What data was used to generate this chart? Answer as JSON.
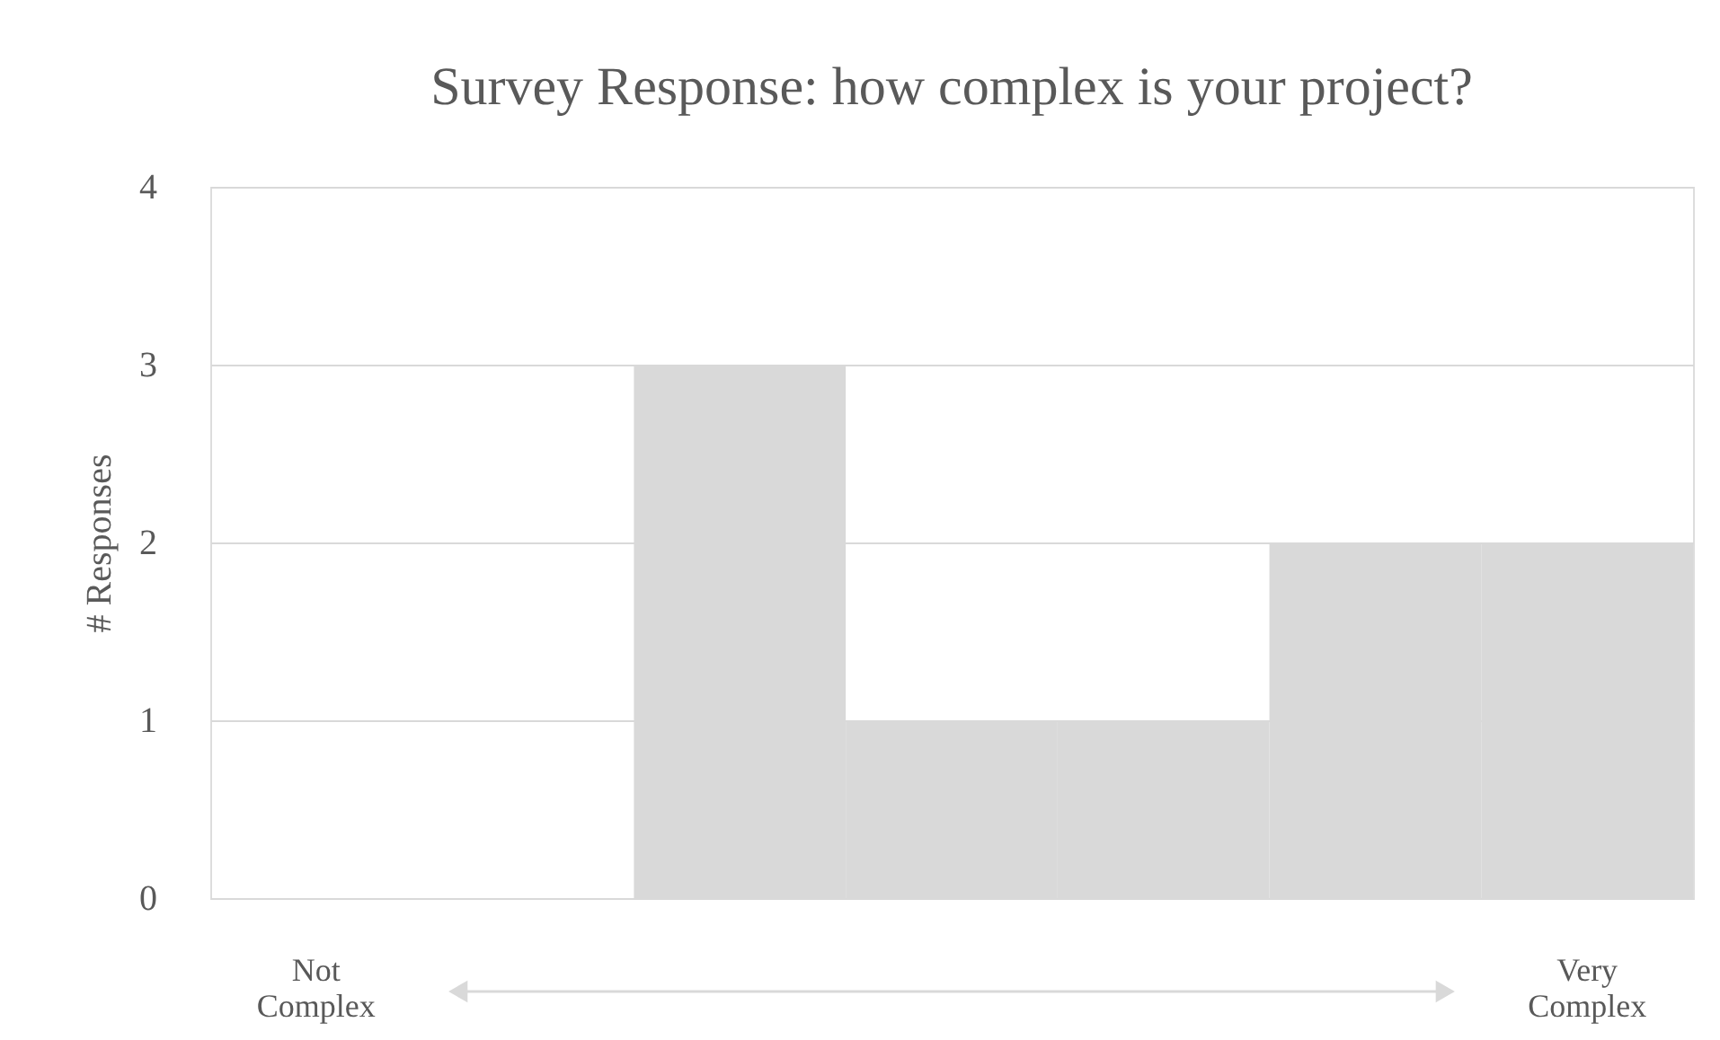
{
  "chart_data": {
    "type": "bar",
    "title": "Survey Response: how complex is your project?",
    "ylabel": "# Responses",
    "categories": [
      null,
      null,
      null,
      null,
      null,
      null,
      null
    ],
    "values": [
      0,
      0,
      3,
      1,
      1,
      2,
      2
    ],
    "color": "#d9d9d9",
    "ylim": [
      0,
      4
    ],
    "yticks": [
      0,
      1,
      2,
      3,
      4
    ],
    "grid": "y",
    "annotations": [
      "Not Complex",
      "Very Complex"
    ]
  }
}
